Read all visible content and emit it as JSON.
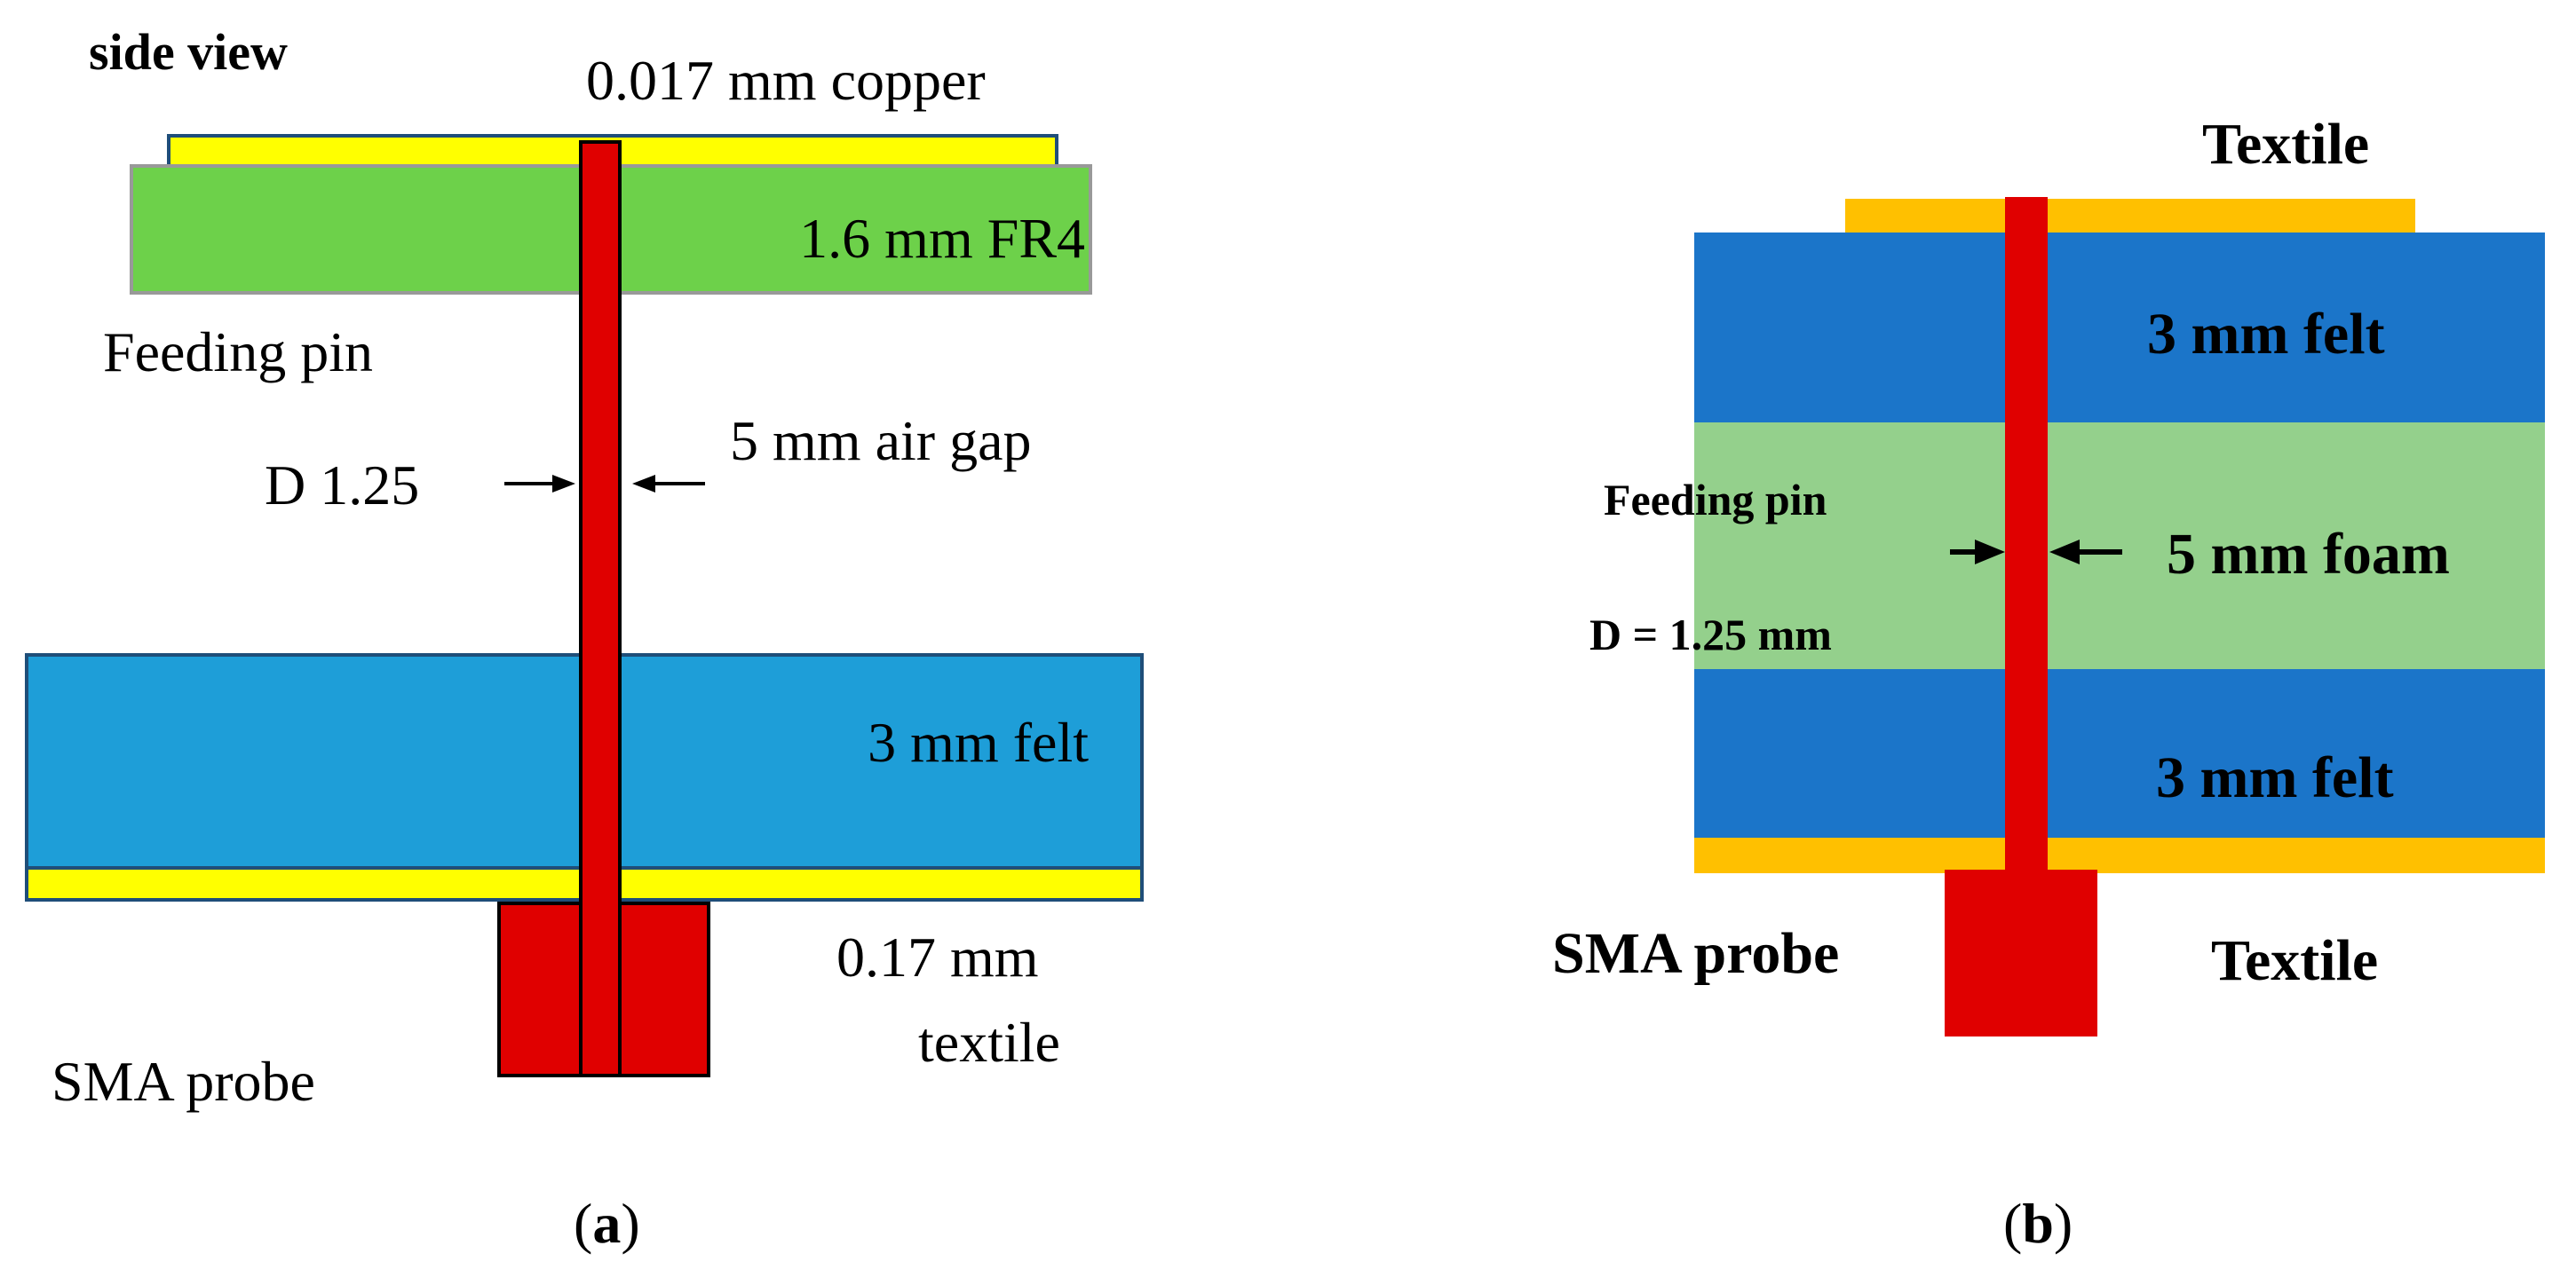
{
  "panel_a": {
    "title": "side view",
    "copper_label": "0.017 mm copper",
    "fr4_label": "1.6 mm FR4",
    "feeding_pin_label": "Feeding pin",
    "diameter_label": "D 1.25",
    "air_gap_label": "5 mm air gap",
    "felt_label": "3 mm felt",
    "textile_label_line1": "0.17 mm",
    "textile_label_line2": "textile",
    "sma_label": "SMA probe",
    "caption_open": "(",
    "caption_letter": "a",
    "caption_close": ")",
    "colors": {
      "copper": "#ffff00",
      "fr4": "#6dd14a",
      "felt": "#1e9ed8",
      "pin": "#e00000",
      "outline": "#1f4e79"
    }
  },
  "panel_b": {
    "textile_top_label": "Textile",
    "felt_top_label": "3 mm felt",
    "feeding_pin_label": "Feeding pin",
    "foam_label": "5 mm foam",
    "diameter_label": "D = 1.25 mm",
    "felt_bottom_label": "3 mm felt",
    "sma_label": "SMA probe",
    "textile_bottom_label": "Textile",
    "caption_open": "(",
    "caption_letter": "b",
    "caption_close": ")",
    "colors": {
      "textile": "#ffc000",
      "felt": "#1b75c9",
      "foam": "#94d08c",
      "pin": "#e00000"
    }
  }
}
